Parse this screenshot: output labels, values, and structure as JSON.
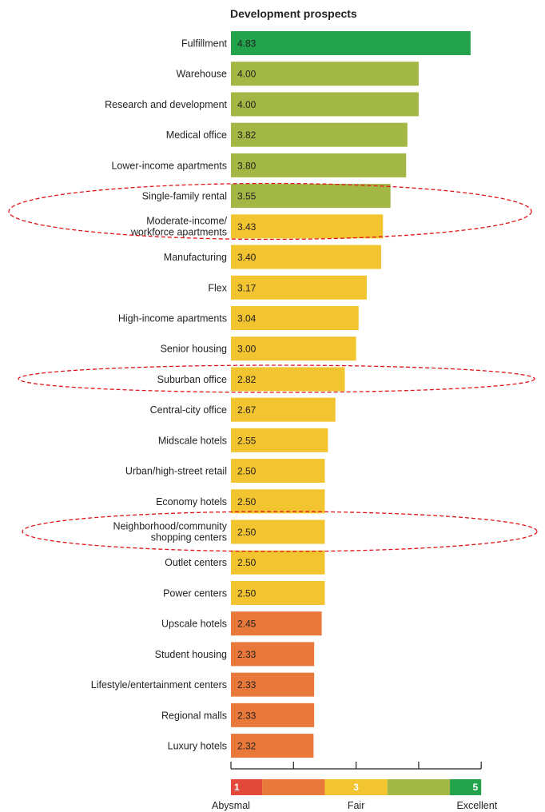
{
  "chart_data": {
    "type": "bar",
    "orientation": "horizontal",
    "title": "Development prospects",
    "xlim": [
      1,
      5
    ],
    "categories": [
      [
        "Fulfillment"
      ],
      [
        "Warehouse"
      ],
      [
        "Research and development"
      ],
      [
        "Medical office"
      ],
      [
        "Lower-income apartments"
      ],
      [
        "Single-family rental"
      ],
      [
        "Moderate-income/",
        "workforce apartments"
      ],
      [
        "Manufacturing"
      ],
      [
        "Flex"
      ],
      [
        "High-income apartments"
      ],
      [
        "Senior housing"
      ],
      [
        "Suburban office"
      ],
      [
        "Central-city office"
      ],
      [
        "Midscale hotels"
      ],
      [
        "Urban/high-street retail"
      ],
      [
        "Economy hotels"
      ],
      [
        "Neighborhood/community",
        "shopping centers"
      ],
      [
        "Outlet centers"
      ],
      [
        "Power centers"
      ],
      [
        "Upscale hotels"
      ],
      [
        "Student housing"
      ],
      [
        "Lifestyle/entertainment centers"
      ],
      [
        "Regional malls"
      ],
      [
        "Luxury hotels"
      ]
    ],
    "values": [
      4.83,
      4.0,
      4.0,
      3.82,
      3.8,
      3.55,
      3.43,
      3.4,
      3.17,
      3.04,
      3.0,
      2.82,
      2.67,
      2.55,
      2.5,
      2.5,
      2.5,
      2.5,
      2.5,
      2.45,
      2.33,
      2.33,
      2.33,
      2.32
    ],
    "value_labels": [
      "4.83",
      "4.00",
      "4.00",
      "3.82",
      "3.80",
      "3.55",
      "3.43",
      "3.40",
      "3.17",
      "3.04",
      "3.00",
      "2.82",
      "2.67",
      "2.55",
      "2.50",
      "2.50",
      "2.50",
      "2.50",
      "2.50",
      "2.45",
      "2.33",
      "2.33",
      "2.33",
      "2.32"
    ],
    "color_scale": {
      "bands": [
        {
          "from": 1.0,
          "to": 1.5,
          "color": "#e2493a"
        },
        {
          "from": 1.5,
          "to": 2.5,
          "color": "#e8793a"
        },
        {
          "from": 2.5,
          "to": 3.5,
          "color": "#f2c430"
        },
        {
          "from": 3.5,
          "to": 4.5,
          "color": "#a3b844"
        },
        {
          "from": 4.5,
          "to": 5.0,
          "color": "#22a24a"
        }
      ],
      "band_markers": [
        "1",
        "",
        "3",
        "",
        "5"
      ],
      "legend_labels": [
        {
          "value": 1,
          "label": "Abysmal"
        },
        {
          "value": 3,
          "label": "Fair"
        },
        {
          "value": 5,
          "label": "Excellent"
        }
      ]
    },
    "highlighted_categories": [
      [
        "Single-family rental",
        "Moderate-income/ workforce apartments"
      ],
      [
        "Suburban office"
      ],
      [
        "Neighborhood/community shopping centers"
      ]
    ],
    "highlight_color": "#e0141b"
  }
}
